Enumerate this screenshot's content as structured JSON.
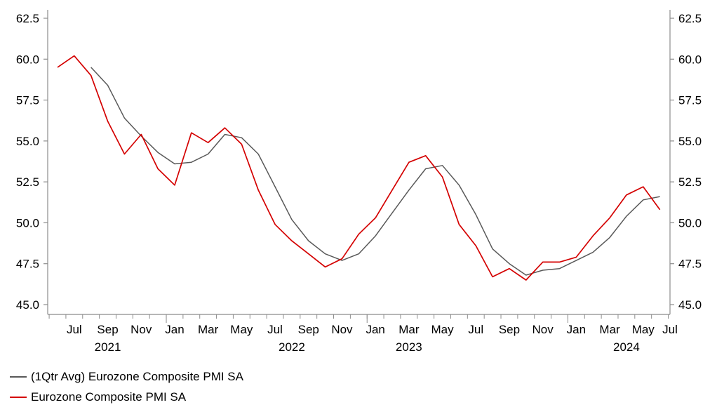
{
  "chart_data": {
    "type": "line",
    "x_months": [
      "2021-06",
      "2021-07",
      "2021-08",
      "2021-09",
      "2021-10",
      "2021-11",
      "2021-12",
      "2022-01",
      "2022-02",
      "2022-03",
      "2022-04",
      "2022-05",
      "2022-06",
      "2022-07",
      "2022-08",
      "2022-09",
      "2022-10",
      "2022-11",
      "2022-12",
      "2023-01",
      "2023-02",
      "2023-03",
      "2023-04",
      "2023-05",
      "2023-06",
      "2023-07",
      "2023-08",
      "2023-09",
      "2023-10",
      "2023-11",
      "2023-12",
      "2024-01",
      "2024-02",
      "2024-03",
      "2024-04",
      "2024-05",
      "2024-06"
    ],
    "x_tick_labels": [
      {
        "month": "2021-07",
        "label": "Jul"
      },
      {
        "month": "2021-09",
        "label": "Sep"
      },
      {
        "month": "2021-11",
        "label": "Nov"
      },
      {
        "month": "2022-01",
        "label": "Jan"
      },
      {
        "month": "2022-03",
        "label": "Mar"
      },
      {
        "month": "2022-05",
        "label": "May"
      },
      {
        "month": "2022-07",
        "label": "Jul"
      },
      {
        "month": "2022-09",
        "label": "Sep"
      },
      {
        "month": "2022-11",
        "label": "Nov"
      },
      {
        "month": "2023-01",
        "label": "Jan"
      },
      {
        "month": "2023-03",
        "label": "Mar"
      },
      {
        "month": "2023-05",
        "label": "May"
      },
      {
        "month": "2023-07",
        "label": "Jul"
      },
      {
        "month": "2023-09",
        "label": "Sep"
      },
      {
        "month": "2023-11",
        "label": "Nov"
      },
      {
        "month": "2024-01",
        "label": "Jan"
      },
      {
        "month": "2024-03",
        "label": "Mar"
      },
      {
        "month": "2024-05",
        "label": "May"
      },
      {
        "month": "2024-07",
        "label": "Jul"
      }
    ],
    "year_labels": [
      {
        "month": "2021-09",
        "label": "2021"
      },
      {
        "month": "2022-08",
        "label": "2022"
      },
      {
        "month": "2023-03",
        "label": "2023"
      },
      {
        "month": "2024-04",
        "label": "2024"
      }
    ],
    "x_range": [
      "2021-06",
      "2024-07"
    ],
    "ylim": [
      45.0,
      62.5
    ],
    "y_ticks": [
      "45.0",
      "47.5",
      "50.0",
      "52.5",
      "55.0",
      "57.5",
      "60.0",
      "62.5"
    ],
    "series": [
      {
        "name": "(1Qtr Avg) Eurozone Composite PMI SA",
        "color": "#595959",
        "values": [
          null,
          null,
          59.5,
          58.4,
          56.4,
          55.3,
          54.3,
          53.6,
          53.7,
          54.2,
          55.4,
          55.2,
          54.2,
          52.2,
          50.2,
          48.9,
          48.1,
          47.7,
          48.1,
          49.2,
          50.6,
          52.0,
          53.3,
          53.5,
          52.3,
          50.5,
          48.4,
          47.5,
          46.8,
          47.1,
          47.2,
          47.7,
          48.2,
          49.1,
          50.4,
          51.4,
          51.6
        ]
      },
      {
        "name": "Eurozone Composite PMI SA",
        "color": "#d40000",
        "values": [
          59.5,
          60.2,
          59.0,
          56.2,
          54.2,
          55.4,
          53.3,
          52.3,
          55.5,
          54.9,
          55.8,
          54.8,
          52.0,
          49.9,
          48.9,
          48.1,
          47.3,
          47.8,
          49.3,
          50.3,
          52.0,
          53.7,
          54.1,
          52.8,
          49.9,
          48.6,
          46.7,
          47.2,
          46.5,
          47.6,
          47.6,
          47.9,
          49.2,
          50.3,
          51.7,
          52.2,
          50.8
        ]
      }
    ]
  }
}
